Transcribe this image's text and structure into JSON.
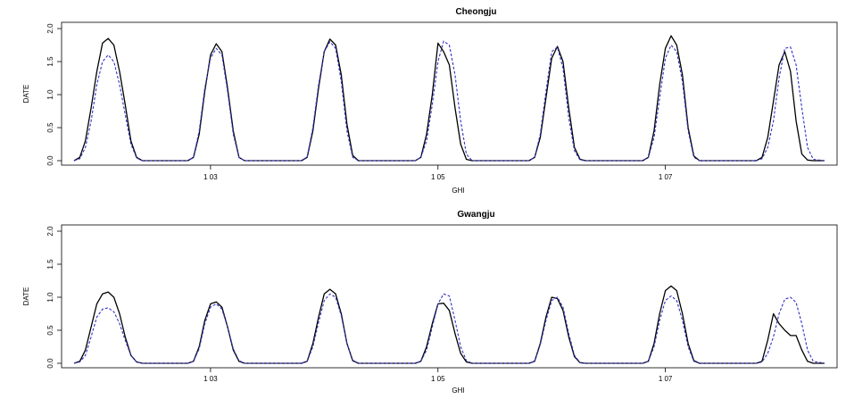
{
  "chart_data": [
    {
      "type": "line",
      "title": "Cheongju",
      "xlabel": "GHI",
      "ylabel": "DATE",
      "xlim": [
        1.3,
        7.9
      ],
      "ylim": [
        0,
        2.0
      ],
      "ytick_labels": [
        "0.0",
        "0.5",
        "1.0",
        "1.5",
        "2.0"
      ],
      "yticks": [
        0,
        0.5,
        1.0,
        1.5,
        2.0
      ],
      "xtick_labels": [
        "1 03",
        "1 05",
        "1 07"
      ],
      "xticks": [
        2.5,
        4.5,
        6.5
      ],
      "grid": false,
      "series": [
        {
          "color": "#000000",
          "style": "solid",
          "x": [
            1.3,
            1.35,
            1.4,
            1.45,
            1.5,
            1.55,
            1.6,
            1.65,
            1.7,
            1.75,
            1.8,
            1.85,
            1.9,
            1.95,
            2.0,
            2.3,
            2.35,
            2.4,
            2.45,
            2.5,
            2.55,
            2.6,
            2.65,
            2.7,
            2.75,
            2.8,
            3.3,
            3.35,
            3.4,
            3.45,
            3.5,
            3.55,
            3.6,
            3.65,
            3.7,
            3.75,
            3.8,
            4.3,
            4.35,
            4.4,
            4.45,
            4.5,
            4.55,
            4.6,
            4.65,
            4.7,
            4.75,
            4.8,
            5.3,
            5.35,
            5.4,
            5.45,
            5.5,
            5.55,
            5.6,
            5.65,
            5.7,
            5.75,
            5.8,
            6.3,
            6.35,
            6.4,
            6.45,
            6.5,
            6.55,
            6.6,
            6.65,
            6.7,
            6.75,
            6.8,
            7.3,
            7.35,
            7.4,
            7.45,
            7.5,
            7.55,
            7.6,
            7.65,
            7.7,
            7.75,
            7.8,
            7.9
          ],
          "y": [
            0.0,
            0.05,
            0.3,
            0.8,
            1.35,
            1.78,
            1.85,
            1.75,
            1.35,
            0.85,
            0.3,
            0.05,
            0.0,
            0.0,
            0.0,
            0.0,
            0.05,
            0.4,
            1.05,
            1.6,
            1.77,
            1.65,
            1.1,
            0.45,
            0.05,
            0.0,
            0.0,
            0.05,
            0.45,
            1.1,
            1.65,
            1.84,
            1.75,
            1.3,
            0.55,
            0.08,
            0.0,
            0.0,
            0.05,
            0.4,
            1.0,
            1.78,
            1.65,
            1.45,
            0.8,
            0.25,
            0.02,
            0.0,
            0.0,
            0.05,
            0.35,
            0.95,
            1.55,
            1.73,
            1.5,
            0.8,
            0.2,
            0.02,
            0.0,
            0.0,
            0.05,
            0.45,
            1.15,
            1.7,
            1.89,
            1.75,
            1.3,
            0.5,
            0.07,
            0.0,
            0.0,
            0.05,
            0.35,
            0.9,
            1.45,
            1.65,
            1.35,
            0.6,
            0.1,
            0.01,
            0.0,
            0.0
          ]
        },
        {
          "color": "#3030c8",
          "style": "dashed",
          "x": [
            1.3,
            1.35,
            1.4,
            1.45,
            1.5,
            1.55,
            1.6,
            1.65,
            1.7,
            1.75,
            1.8,
            1.85,
            1.9,
            1.95,
            2.0,
            2.3,
            2.35,
            2.4,
            2.45,
            2.5,
            2.55,
            2.6,
            2.65,
            2.7,
            2.75,
            2.8,
            3.3,
            3.35,
            3.4,
            3.45,
            3.5,
            3.55,
            3.6,
            3.65,
            3.7,
            3.75,
            3.8,
            4.3,
            4.35,
            4.4,
            4.45,
            4.5,
            4.55,
            4.6,
            4.65,
            4.7,
            4.75,
            4.8,
            5.3,
            5.35,
            5.4,
            5.45,
            5.5,
            5.55,
            5.6,
            5.65,
            5.7,
            5.75,
            5.8,
            6.3,
            6.35,
            6.4,
            6.45,
            6.5,
            6.55,
            6.6,
            6.65,
            6.7,
            6.75,
            6.8,
            7.3,
            7.35,
            7.4,
            7.45,
            7.5,
            7.55,
            7.6,
            7.65,
            7.7,
            7.75,
            7.8,
            7.9
          ],
          "y": [
            0.0,
            0.03,
            0.2,
            0.6,
            1.15,
            1.5,
            1.6,
            1.5,
            1.15,
            0.7,
            0.25,
            0.04,
            0.0,
            0.0,
            0.0,
            0.0,
            0.05,
            0.45,
            1.1,
            1.55,
            1.7,
            1.6,
            1.05,
            0.4,
            0.05,
            0.0,
            0.0,
            0.06,
            0.5,
            1.15,
            1.65,
            1.8,
            1.7,
            1.2,
            0.45,
            0.05,
            0.0,
            0.0,
            0.05,
            0.3,
            0.85,
            1.5,
            1.81,
            1.75,
            1.3,
            0.6,
            0.1,
            0.0,
            0.0,
            0.05,
            0.4,
            1.05,
            1.65,
            1.72,
            1.4,
            0.65,
            0.15,
            0.01,
            0.0,
            0.0,
            0.05,
            0.35,
            0.95,
            1.55,
            1.75,
            1.65,
            1.2,
            0.45,
            0.05,
            0.0,
            0.0,
            0.03,
            0.2,
            0.6,
            1.25,
            1.7,
            1.72,
            1.45,
            0.8,
            0.2,
            0.02,
            0.0
          ]
        }
      ]
    },
    {
      "type": "line",
      "title": "Gwangju",
      "xlabel": "GHI",
      "ylabel": "DATE",
      "xlim": [
        1.3,
        7.9
      ],
      "ylim": [
        0,
        2.0
      ],
      "ytick_labels": [
        "0.0",
        "0.5",
        "1.0",
        "1.5",
        "2.0"
      ],
      "yticks": [
        0,
        0.5,
        1.0,
        1.5,
        2.0
      ],
      "xtick_labels": [
        "1 03",
        "1 05",
        "1 07"
      ],
      "xticks": [
        2.5,
        4.5,
        6.5
      ],
      "grid": false,
      "series": [
        {
          "color": "#000000",
          "style": "solid",
          "x": [
            1.3,
            1.35,
            1.4,
            1.45,
            1.5,
            1.55,
            1.6,
            1.65,
            1.7,
            1.75,
            1.8,
            1.85,
            1.9,
            1.95,
            2.0,
            2.3,
            2.35,
            2.4,
            2.45,
            2.5,
            2.55,
            2.6,
            2.65,
            2.7,
            2.75,
            2.8,
            3.3,
            3.35,
            3.4,
            3.45,
            3.5,
            3.55,
            3.6,
            3.65,
            3.7,
            3.75,
            3.8,
            4.3,
            4.35,
            4.4,
            4.45,
            4.5,
            4.55,
            4.6,
            4.65,
            4.7,
            4.75,
            4.8,
            5.3,
            5.35,
            5.4,
            5.45,
            5.5,
            5.55,
            5.6,
            5.65,
            5.7,
            5.75,
            5.8,
            6.3,
            6.35,
            6.4,
            6.45,
            6.5,
            6.55,
            6.6,
            6.65,
            6.7,
            6.75,
            6.8,
            7.3,
            7.35,
            7.4,
            7.45,
            7.5,
            7.55,
            7.6,
            7.65,
            7.7,
            7.75,
            7.8,
            7.9
          ],
          "y": [
            0.0,
            0.03,
            0.2,
            0.55,
            0.9,
            1.05,
            1.08,
            1.0,
            0.75,
            0.4,
            0.12,
            0.02,
            0.0,
            0.0,
            0.0,
            0.0,
            0.03,
            0.25,
            0.65,
            0.9,
            0.93,
            0.85,
            0.55,
            0.2,
            0.03,
            0.0,
            0.0,
            0.03,
            0.3,
            0.7,
            1.05,
            1.12,
            1.05,
            0.75,
            0.3,
            0.04,
            0.0,
            0.0,
            0.03,
            0.25,
            0.6,
            0.9,
            0.91,
            0.8,
            0.45,
            0.15,
            0.02,
            0.0,
            0.0,
            0.03,
            0.3,
            0.7,
            1.0,
            0.98,
            0.8,
            0.4,
            0.1,
            0.01,
            0.0,
            0.0,
            0.03,
            0.3,
            0.75,
            1.1,
            1.17,
            1.1,
            0.75,
            0.3,
            0.04,
            0.0,
            0.0,
            0.03,
            0.35,
            0.75,
            0.6,
            0.5,
            0.42,
            0.42,
            0.2,
            0.03,
            0.0,
            0.0
          ]
        },
        {
          "color": "#3030c8",
          "style": "dashed",
          "x": [
            1.3,
            1.35,
            1.4,
            1.45,
            1.5,
            1.55,
            1.6,
            1.65,
            1.7,
            1.75,
            1.8,
            1.85,
            1.9,
            1.95,
            2.0,
            2.3,
            2.35,
            2.4,
            2.45,
            2.5,
            2.55,
            2.6,
            2.65,
            2.7,
            2.75,
            2.8,
            3.3,
            3.35,
            3.4,
            3.45,
            3.5,
            3.55,
            3.6,
            3.65,
            3.7,
            3.75,
            3.8,
            4.3,
            4.35,
            4.4,
            4.45,
            4.5,
            4.55,
            4.6,
            4.65,
            4.7,
            4.75,
            4.8,
            5.3,
            5.35,
            5.4,
            5.45,
            5.5,
            5.55,
            5.6,
            5.65,
            5.7,
            5.75,
            5.8,
            6.3,
            6.35,
            6.4,
            6.45,
            6.5,
            6.55,
            6.6,
            6.65,
            6.7,
            6.75,
            6.8,
            7.3,
            7.35,
            7.4,
            7.45,
            7.5,
            7.55,
            7.6,
            7.65,
            7.7,
            7.75,
            7.8,
            7.9
          ],
          "y": [
            0.0,
            0.02,
            0.12,
            0.4,
            0.7,
            0.82,
            0.84,
            0.78,
            0.6,
            0.35,
            0.12,
            0.02,
            0.0,
            0.0,
            0.0,
            0.0,
            0.03,
            0.22,
            0.6,
            0.85,
            0.9,
            0.82,
            0.55,
            0.22,
            0.04,
            0.0,
            0.0,
            0.03,
            0.25,
            0.62,
            0.95,
            1.05,
            1.0,
            0.72,
            0.3,
            0.05,
            0.0,
            0.0,
            0.03,
            0.2,
            0.55,
            0.9,
            1.05,
            1.02,
            0.65,
            0.25,
            0.04,
            0.0,
            0.0,
            0.03,
            0.28,
            0.65,
            0.95,
            1.0,
            0.85,
            0.45,
            0.12,
            0.01,
            0.0,
            0.0,
            0.03,
            0.25,
            0.65,
            0.95,
            1.02,
            0.95,
            0.65,
            0.25,
            0.03,
            0.0,
            0.0,
            0.02,
            0.15,
            0.4,
            0.75,
            0.97,
            1.0,
            0.92,
            0.6,
            0.2,
            0.03,
            0.0
          ]
        }
      ]
    }
  ]
}
